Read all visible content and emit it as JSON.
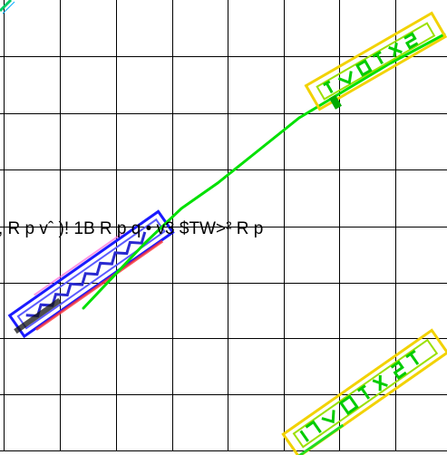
{
  "grid": {
    "line_color": "#000000",
    "background": "#ffffff"
  },
  "garbled_text": ", R p  vˆ )! 1B  R p  q  •  v3 $TW>²  R p",
  "colors": {
    "green_line": "#00e000",
    "blue_stamp": "#1a1aff",
    "yellow_stamp": "#f2d200",
    "green_stamp": "#00cc00",
    "red_specks": "#ff3030"
  },
  "decorations": {
    "top_right_stamp": "yellow-green-stamp-icon",
    "bottom_right_stamp": "yellow-green-stamp-icon",
    "left_stamp": "blue-stamp-icon",
    "top_left_corner": "green-corner-stroke-icon"
  }
}
